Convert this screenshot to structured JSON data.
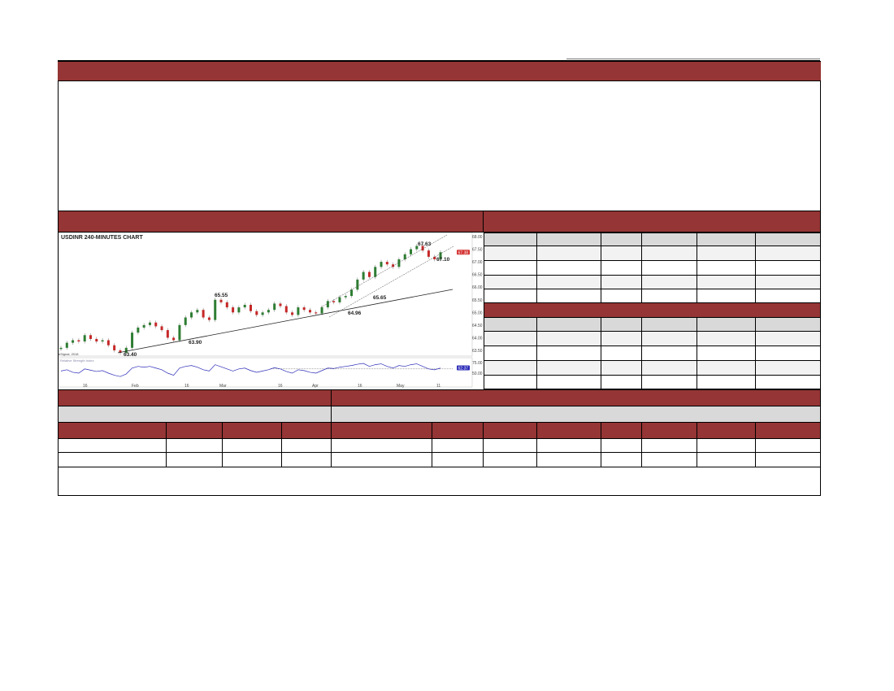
{
  "chart": {
    "title": "USDINR 240-MINUTES CHART",
    "price_ticks": [
      "68.00",
      "67.50",
      "67.00",
      "66.50",
      "66.00",
      "65.50",
      "65.00",
      "64.50",
      "64.00",
      "63.50"
    ],
    "last_price_badge": "67.38",
    "rsi_ticks": [
      "75.00",
      "50.00"
    ],
    "rsi_badge": "62.37",
    "x_labels": [
      "16",
      "Feb",
      "16",
      "Mar",
      "16",
      "Apr",
      "16",
      "May",
      "11"
    ],
    "annotations": [
      "63.40",
      "63.90",
      "65.55",
      "64.96",
      "65.65",
      "67.63",
      "67.10"
    ],
    "source_note": "eSignal, 2018",
    "rsi_label": "Relative Strength Index",
    "colors": {
      "up": "#2e7d32",
      "down": "#c62828",
      "rsi": "#2b2bb8",
      "header": "#953535"
    },
    "closes": [
      63.6,
      63.8,
      63.9,
      63.85,
      64.1,
      63.95,
      63.85,
      63.9,
      63.7,
      63.5,
      63.4,
      63.6,
      64.2,
      64.4,
      64.5,
      64.6,
      64.45,
      64.3,
      64.0,
      63.9,
      64.5,
      64.8,
      65.0,
      65.1,
      64.8,
      64.7,
      65.5,
      65.4,
      65.2,
      65.0,
      65.2,
      65.3,
      65.05,
      64.9,
      65.0,
      65.1,
      65.35,
      65.25,
      65.0,
      64.9,
      65.2,
      65.1,
      65.0,
      64.96,
      65.2,
      65.45,
      65.4,
      65.6,
      65.65,
      65.9,
      66.3,
      66.6,
      66.4,
      66.8,
      67.0,
      66.9,
      66.8,
      67.1,
      67.3,
      67.5,
      67.63,
      67.45,
      67.2,
      67.1,
      67.38
    ],
    "rsi": [
      55,
      58,
      52,
      50,
      60,
      57,
      54,
      56,
      50,
      45,
      42,
      48,
      62,
      66,
      64,
      66,
      62,
      58,
      50,
      45,
      62,
      66,
      68,
      64,
      58,
      55,
      70,
      65,
      60,
      55,
      60,
      62,
      56,
      52,
      55,
      58,
      63,
      60,
      54,
      50,
      58,
      56,
      52,
      50,
      56,
      62,
      61,
      64,
      66,
      68,
      71,
      73,
      66,
      70,
      72,
      66,
      62,
      68,
      66,
      70,
      72,
      66,
      60,
      58,
      62
    ]
  }
}
